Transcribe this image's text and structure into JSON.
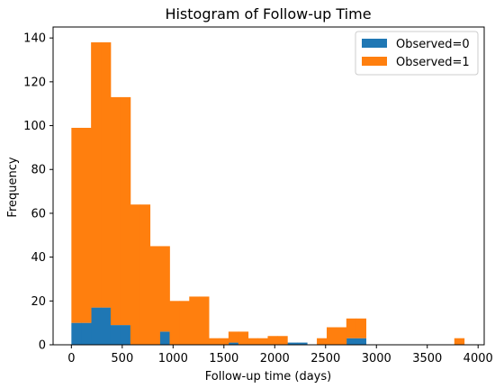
{
  "chart_data": {
    "type": "bar",
    "subtype": "stacked-histogram",
    "title": "Histogram of Follow-up Time",
    "xlabel": "Follow-up time (days)",
    "ylabel": "Frequency",
    "xlim": [
      -180,
      4060
    ],
    "ylim": [
      0,
      145
    ],
    "xticks": [
      0,
      500,
      1000,
      1500,
      2000,
      2500,
      3000,
      3500,
      4000
    ],
    "yticks": [
      0,
      20,
      40,
      60,
      80,
      100,
      120,
      140
    ],
    "bin_edges": [
      0,
      97,
      193,
      290,
      386,
      483,
      580,
      676,
      773,
      869,
      966,
      1062,
      1159,
      1255,
      1352,
      1449,
      1545,
      1642,
      1738,
      1835,
      1931,
      2028,
      2124,
      2221,
      2318,
      2414,
      2511,
      2607,
      2704,
      2800,
      2897,
      3186,
      3573,
      3670,
      3766,
      3863
    ],
    "series": [
      {
        "name": "Observed=0",
        "color": "#1f77b4",
        "bins": [
          {
            "x0": 0,
            "x1": 97,
            "value": 10
          },
          {
            "x0": 97,
            "x1": 193,
            "value": 10
          },
          {
            "x0": 193,
            "x1": 290,
            "value": 17
          },
          {
            "x0": 290,
            "x1": 386,
            "value": 17
          },
          {
            "x0": 386,
            "x1": 483,
            "value": 9
          },
          {
            "x0": 483,
            "x1": 580,
            "value": 9
          },
          {
            "x0": 869,
            "x1": 966,
            "value": 6
          },
          {
            "x0": 1545,
            "x1": 1642,
            "value": 1
          },
          {
            "x0": 2124,
            "x1": 2221,
            "value": 1
          },
          {
            "x0": 2221,
            "x1": 2318,
            "value": 1
          },
          {
            "x0": 2704,
            "x1": 2800,
            "value": 3
          },
          {
            "x0": 2800,
            "x1": 2897,
            "value": 3
          }
        ]
      },
      {
        "name": "Observed=1",
        "color": "#ff7f0e",
        "bins": [
          {
            "x0": 0,
            "x1": 97,
            "value": 89
          },
          {
            "x0": 97,
            "x1": 193,
            "value": 89
          },
          {
            "x0": 193,
            "x1": 290,
            "value": 121
          },
          {
            "x0": 290,
            "x1": 386,
            "value": 121
          },
          {
            "x0": 386,
            "x1": 483,
            "value": 104
          },
          {
            "x0": 483,
            "x1": 580,
            "value": 104
          },
          {
            "x0": 580,
            "x1": 676,
            "value": 64
          },
          {
            "x0": 676,
            "x1": 773,
            "value": 64
          },
          {
            "x0": 773,
            "x1": 869,
            "value": 45
          },
          {
            "x0": 869,
            "x1": 966,
            "value": 39
          },
          {
            "x0": 966,
            "x1": 1062,
            "value": 20
          },
          {
            "x0": 1062,
            "x1": 1159,
            "value": 20
          },
          {
            "x0": 1159,
            "x1": 1255,
            "value": 22
          },
          {
            "x0": 1255,
            "x1": 1352,
            "value": 22
          },
          {
            "x0": 1352,
            "x1": 1449,
            "value": 3
          },
          {
            "x0": 1449,
            "x1": 1545,
            "value": 3
          },
          {
            "x0": 1545,
            "x1": 1642,
            "value": 5
          },
          {
            "x0": 1642,
            "x1": 1738,
            "value": 6
          },
          {
            "x0": 1738,
            "x1": 1835,
            "value": 3
          },
          {
            "x0": 1835,
            "x1": 1931,
            "value": 3
          },
          {
            "x0": 1931,
            "x1": 2028,
            "value": 4
          },
          {
            "x0": 2028,
            "x1": 2124,
            "value": 4
          },
          {
            "x0": 2124,
            "x1": 2221,
            "value": 0
          },
          {
            "x0": 2221,
            "x1": 2318,
            "value": 0
          },
          {
            "x0": 2414,
            "x1": 2511,
            "value": 3
          },
          {
            "x0": 2511,
            "x1": 2607,
            "value": 8
          },
          {
            "x0": 2607,
            "x1": 2704,
            "value": 8
          },
          {
            "x0": 2704,
            "x1": 2800,
            "value": 9
          },
          {
            "x0": 2800,
            "x1": 2897,
            "value": 9
          },
          {
            "x0": 3766,
            "x1": 3863,
            "value": 3
          }
        ]
      }
    ],
    "grid": false,
    "legend_position": "top-right"
  }
}
